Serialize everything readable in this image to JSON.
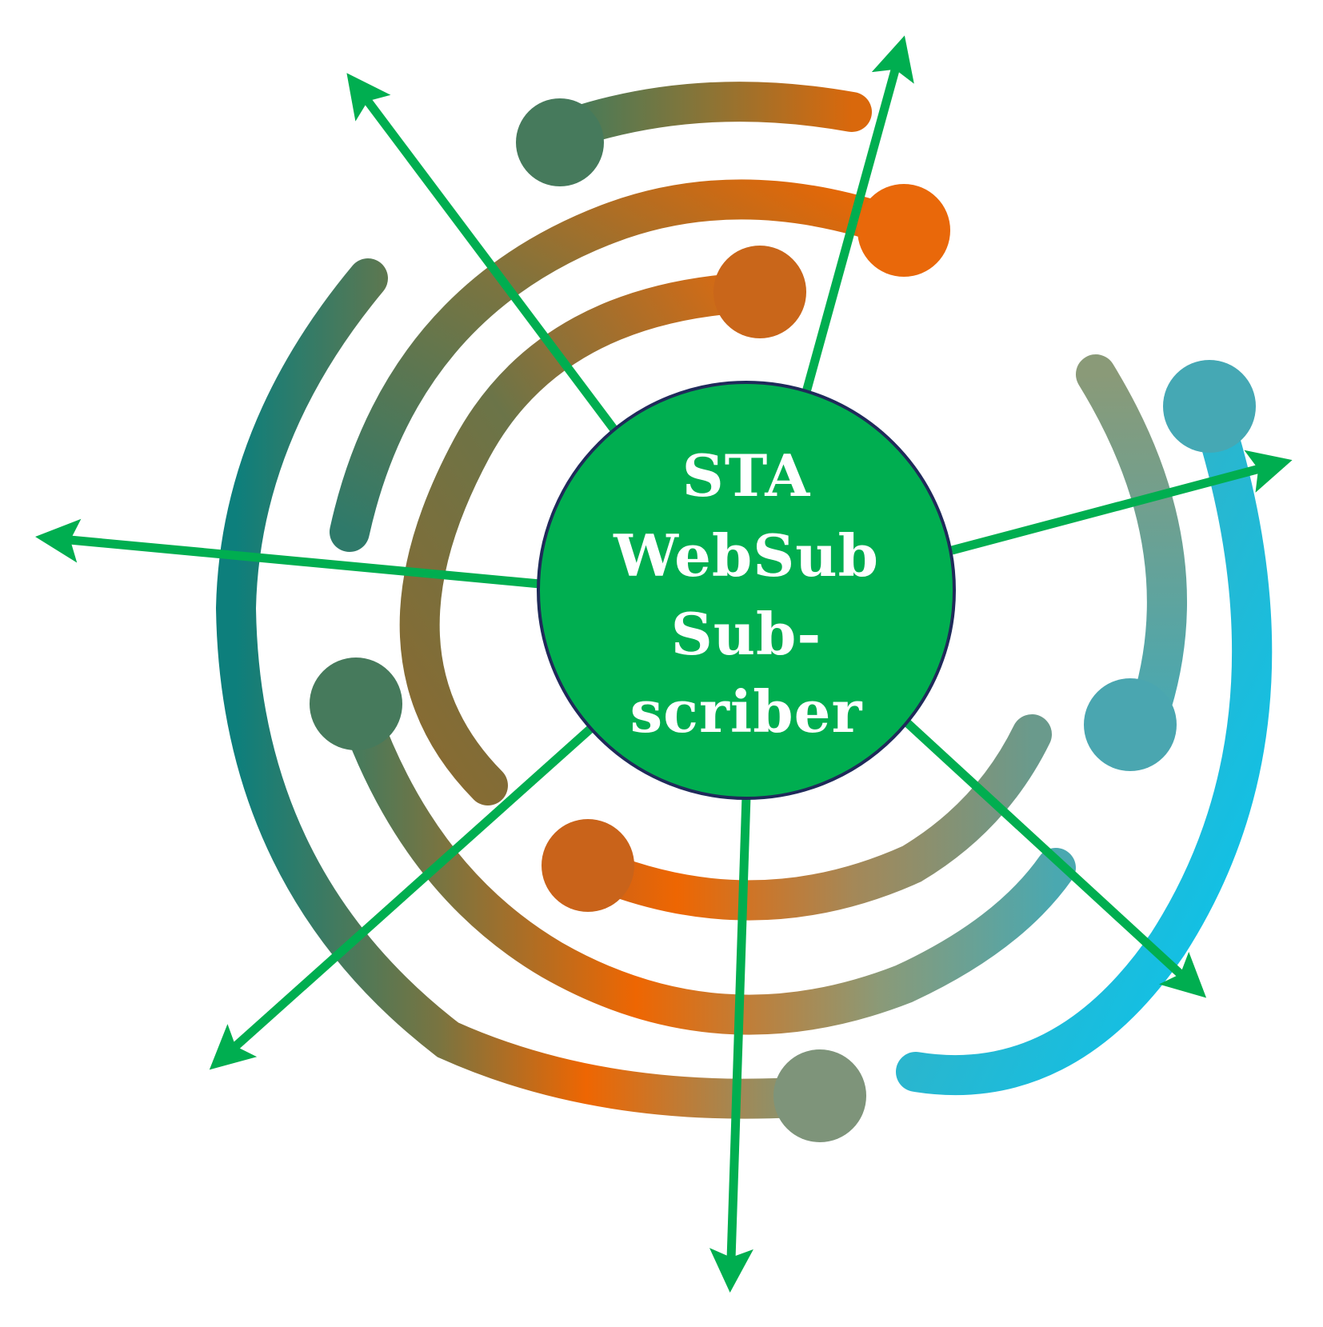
{
  "hub": {
    "label_lines": [
      "STA",
      "WebSub",
      "Sub-",
      "scriber"
    ]
  },
  "colors": {
    "hub_fill": "#00ae50",
    "hub_stroke": "#1f2a5a",
    "arrow": "#00ae50",
    "gradient_teal": "#0d7f7c",
    "gradient_olive": "#7a7440",
    "gradient_orange": "#ee6602",
    "gradient_grey": "#8a9a78",
    "gradient_cyan": "#07c5ef"
  },
  "icons": {
    "background": "circuit-arcs-icon",
    "arrows": "radiating-arrow-icon"
  }
}
